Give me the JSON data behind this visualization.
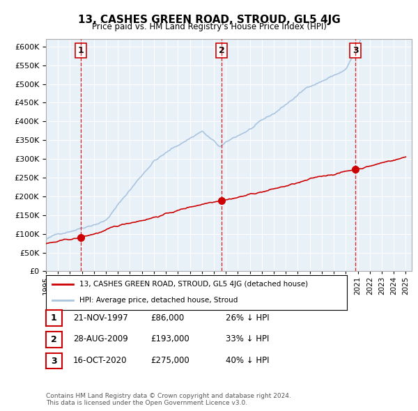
{
  "title": "13, CASHES GREEN ROAD, STROUD, GL5 4JG",
  "subtitle": "Price paid vs. HM Land Registry's House Price Index (HPI)",
  "hpi_label": "HPI: Average price, detached house, Stroud",
  "property_label": "13, CASHES GREEN ROAD, STROUD, GL5 4JG (detached house)",
  "transactions": [
    {
      "num": 1,
      "date": "21-NOV-1997",
      "price": 86000,
      "pct": "26% ↓ HPI",
      "year": 1997.9
    },
    {
      "num": 2,
      "date": "28-AUG-2009",
      "price": 193000,
      "pct": "33% ↓ HPI",
      "year": 2009.65
    },
    {
      "num": 3,
      "date": "16-OCT-2020",
      "price": 275000,
      "pct": "40% ↓ HPI",
      "year": 2020.8
    }
  ],
  "footer": "Contains HM Land Registry data © Crown copyright and database right 2024.\nThis data is licensed under the Open Government Licence v3.0.",
  "hpi_color": "#aac4e0",
  "property_color": "#cc0000",
  "transaction_dot_color": "#cc0000",
  "vline_color": "#cc0000",
  "box_color": "#cc0000",
  "background_color": "#e8f0f8",
  "ylim": [
    0,
    620000
  ],
  "yticks": [
    0,
    50000,
    100000,
    150000,
    200000,
    250000,
    300000,
    350000,
    400000,
    450000,
    500000,
    550000,
    600000
  ],
  "xmin": 1995,
  "xmax": 2025.5
}
